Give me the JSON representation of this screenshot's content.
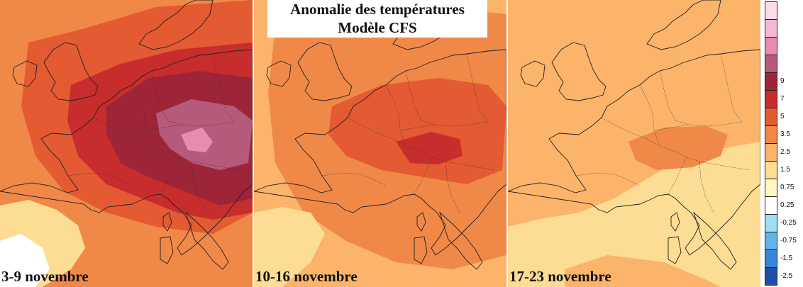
{
  "title": {
    "line1": "Anomalie des températures",
    "line2": "Modèle CFS"
  },
  "panels": [
    {
      "period": "3-9 novembre",
      "intensity": 3
    },
    {
      "period": "10-16 novembre",
      "intensity": 2
    },
    {
      "period": "17-23 novembre",
      "intensity": 1
    }
  ],
  "legend": {
    "classes": [
      {
        "color": "#1f4fa8",
        "label": "-2.5"
      },
      {
        "color": "#3a86d6",
        "label": "-1.5"
      },
      {
        "color": "#63b3ea",
        "label": "-0.75"
      },
      {
        "color": "#9ddff2",
        "label": "-0.25"
      },
      {
        "color": "#ffffff",
        "label": "0.25"
      },
      {
        "color": "#fff6c2",
        "label": "0.75"
      },
      {
        "color": "#fddc94",
        "label": "1.5"
      },
      {
        "color": "#fbb46a",
        "label": "2.5"
      },
      {
        "color": "#f08848",
        "label": "3.5"
      },
      {
        "color": "#e35a33",
        "label": "5"
      },
      {
        "color": "#c72d2d",
        "label": "7"
      },
      {
        "color": "#9e2438",
        "label": "9"
      },
      {
        "color": "#b55a7a",
        "label": ""
      },
      {
        "color": "#e88bb0",
        "label": ""
      },
      {
        "color": "#f5b8d2",
        "label": ""
      },
      {
        "color": "#fcdcea",
        "label": ""
      }
    ]
  }
}
